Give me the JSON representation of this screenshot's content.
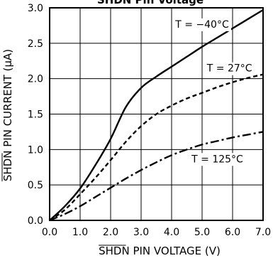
{
  "chart_data": {
    "type": "line",
    "title": "SHDN Pin Voltage",
    "xlabel": "SHDN PIN VOLTAGE (V)",
    "ylabel": "SHDN PIN CURRENT (μA)",
    "xlim": [
      0,
      7
    ],
    "ylim": [
      0,
      3
    ],
    "x_ticks": [
      0,
      1,
      2,
      3,
      4,
      5,
      6,
      7
    ],
    "y_ticks": [
      0,
      0.5,
      1,
      1.5,
      2,
      2.5,
      3
    ],
    "x_tick_labels": [
      "0.0",
      "1.0",
      "2.0",
      "3.0",
      "4.0",
      "5.0",
      "6.0",
      "7.0"
    ],
    "y_tick_labels": [
      "0.0",
      "0.5",
      "1.0",
      "1.5",
      "2.0",
      "2.5",
      "3.0"
    ],
    "grid": true,
    "series": [
      {
        "name": "T = −40°C",
        "style": "solid",
        "color": "#000000",
        "x": [
          0,
          0.5,
          1.0,
          1.5,
          2.0,
          2.5,
          3.0,
          3.5,
          4.0,
          4.5,
          5.0,
          5.5,
          6.0,
          6.5,
          7.0
        ],
        "y": [
          0,
          0.2,
          0.45,
          0.78,
          1.15,
          1.6,
          1.87,
          2.03,
          2.17,
          2.31,
          2.45,
          2.58,
          2.71,
          2.84,
          2.97
        ]
      },
      {
        "name": "T = 27°C",
        "style": "dashed",
        "color": "#000000",
        "x": [
          0,
          0.5,
          1.0,
          1.5,
          2.0,
          2.5,
          3.0,
          3.5,
          4.0,
          4.5,
          5.0,
          5.5,
          6.0,
          6.5,
          7.0
        ],
        "y": [
          0,
          0.15,
          0.37,
          0.6,
          0.85,
          1.11,
          1.33,
          1.5,
          1.62,
          1.72,
          1.8,
          1.88,
          1.95,
          2.01,
          2.06
        ]
      },
      {
        "name": "T = 125°C",
        "style": "dashdot",
        "color": "#000000",
        "x": [
          0,
          0.5,
          1.0,
          1.5,
          2.0,
          2.5,
          3.0,
          3.5,
          4.0,
          4.5,
          5.0,
          5.5,
          6.0,
          6.5,
          7.0
        ],
        "y": [
          0,
          0.09,
          0.2,
          0.33,
          0.46,
          0.59,
          0.71,
          0.82,
          0.92,
          1.0,
          1.07,
          1.12,
          1.17,
          1.21,
          1.25
        ]
      }
    ],
    "labels": [
      {
        "text": "T = −40°C",
        "x": 5.0,
        "y": 2.72
      },
      {
        "text": "T = 27°C",
        "x": 5.9,
        "y": 2.1
      },
      {
        "text": "T = 125°C",
        "x": 5.5,
        "y": 0.82
      }
    ]
  }
}
